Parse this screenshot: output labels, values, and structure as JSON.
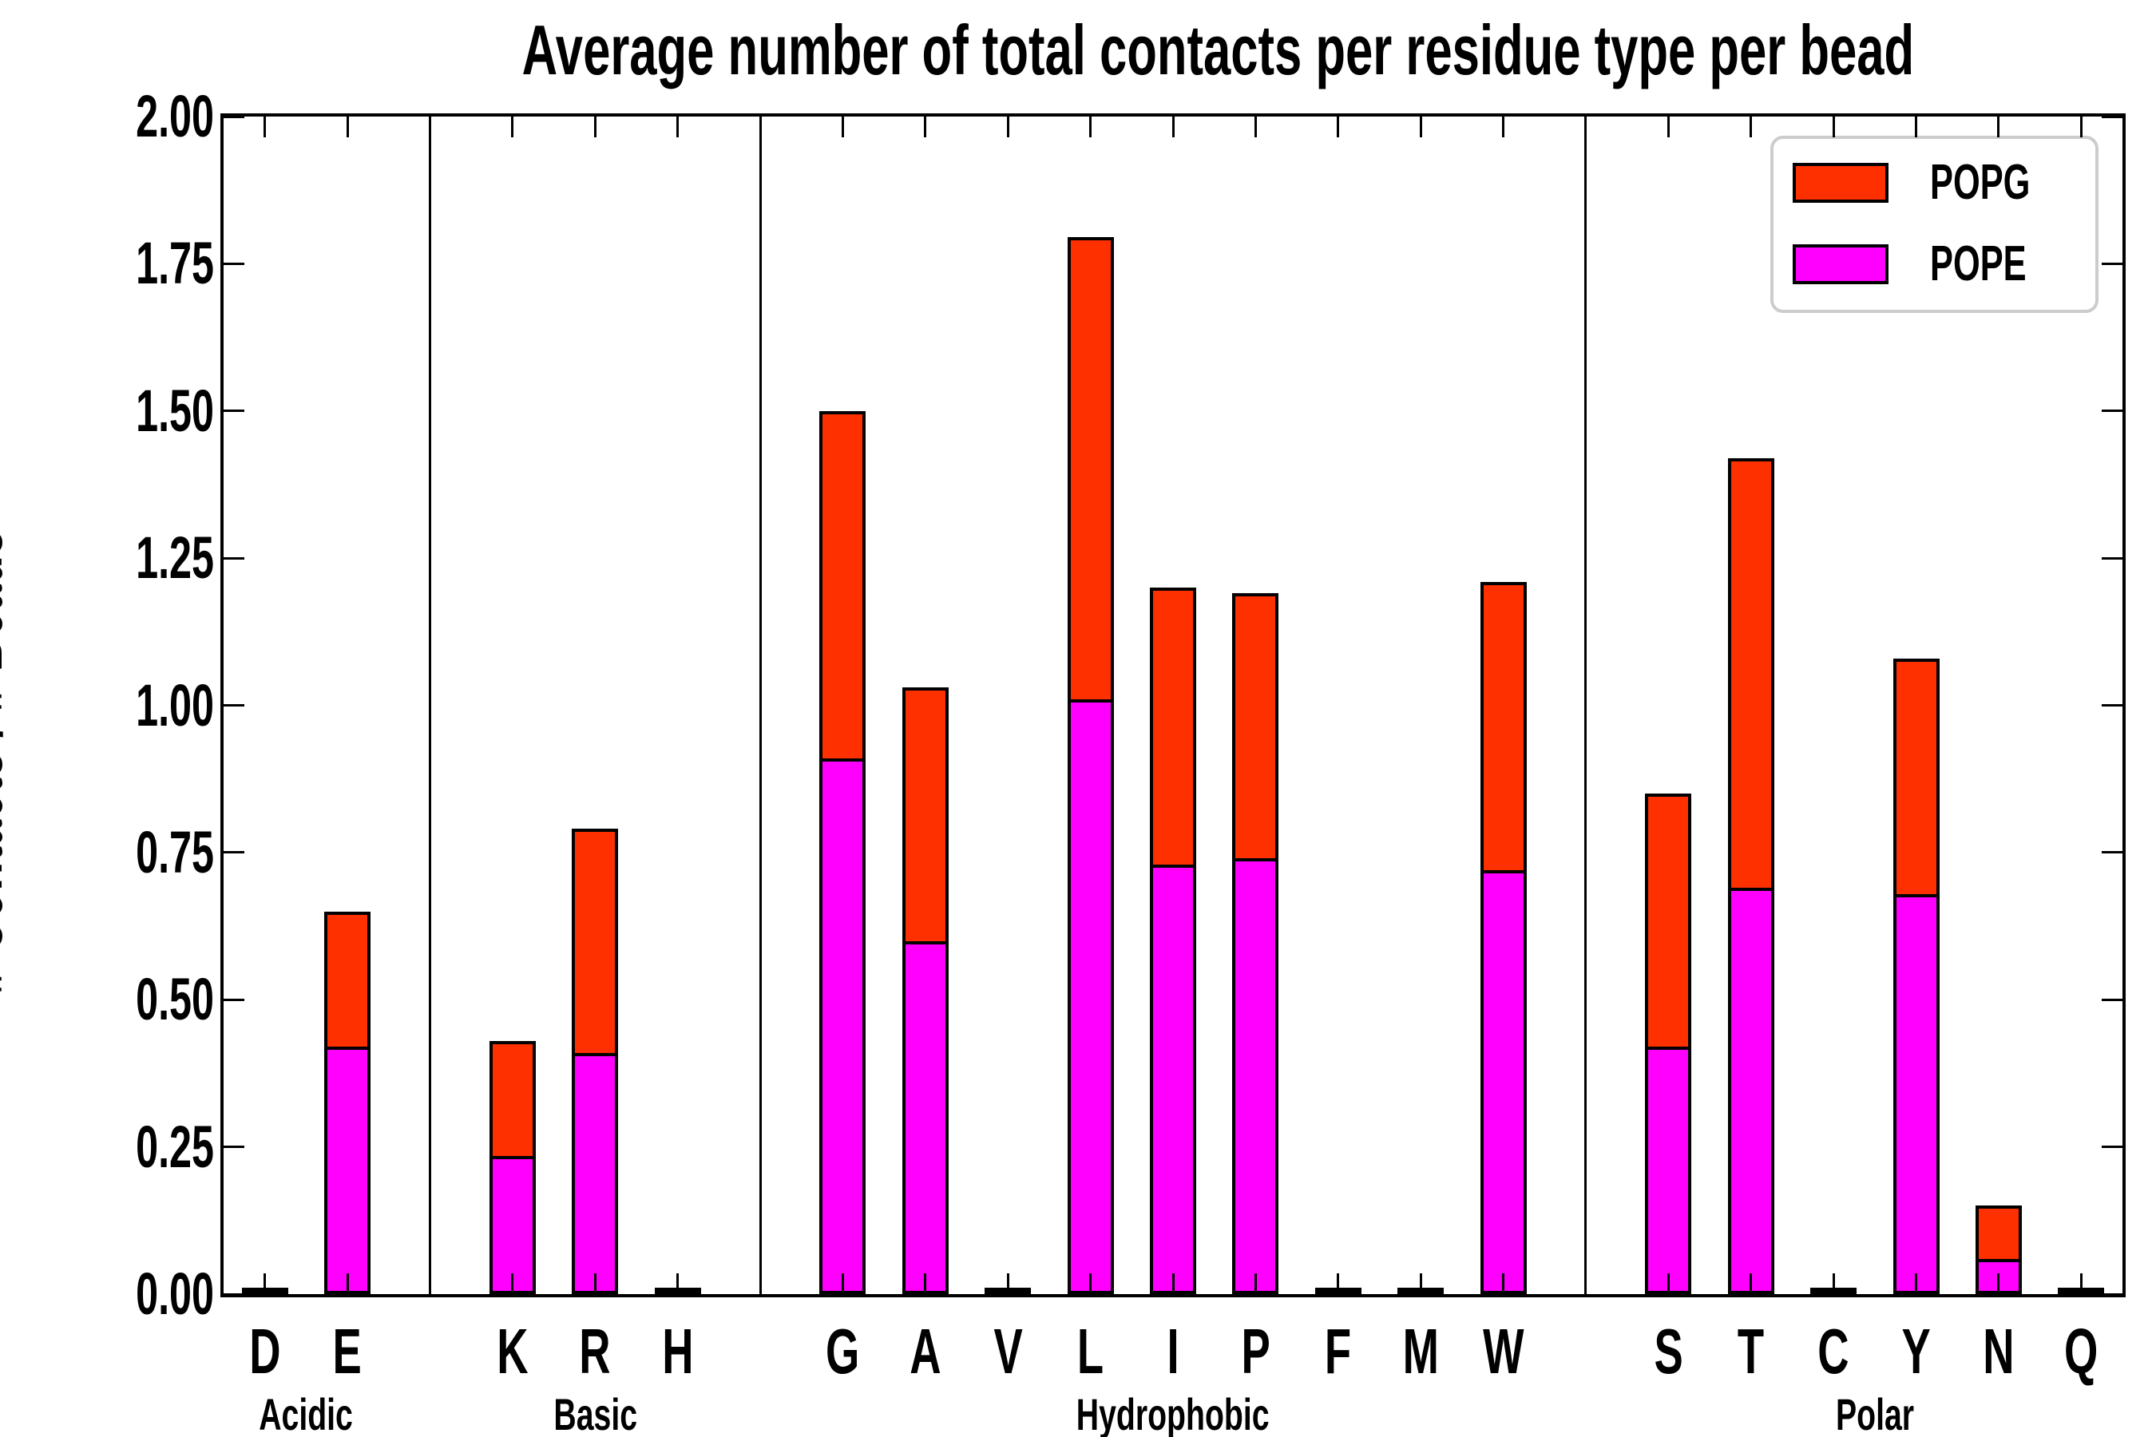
{
  "title": "Average number of total contacts per residue type per bead",
  "axis": {
    "ylabel": "# Contacts / # Beads",
    "ylim": [
      0.0,
      2.0
    ],
    "ytick_step": 0.25,
    "ytick_labels": [
      "0.00",
      "0.25",
      "0.50",
      "0.75",
      "1.00",
      "1.25",
      "1.50",
      "1.75",
      "2.00"
    ]
  },
  "legend": {
    "position": "upper right",
    "entries": [
      {
        "label": "POPG",
        "color": "#ff3000"
      },
      {
        "label": "POPE",
        "color": "#ff00ff"
      }
    ]
  },
  "colors": {
    "popg_red": "#ff3000",
    "pope_magenta": "#ff00ff",
    "bar_edge": "#000000",
    "legend_border": "#cccccc",
    "background": "#ffffff"
  },
  "chart_data": {
    "type": "bar",
    "stacked": true,
    "title": "Average number of total contacts per residue type per bead",
    "xlabel": "",
    "ylabel": "# Contacts / # Beads",
    "ylim": [
      0.0,
      2.0
    ],
    "grid": false,
    "legend_position": "upper right",
    "series_order_bottom_to_top": [
      "POPE",
      "POPG"
    ],
    "series_colors": {
      "POPE": "#ff00ff",
      "POPG": "#ff3000"
    },
    "groups": [
      {
        "label": "Acidic",
        "categories": [
          "D",
          "E"
        ],
        "POPE": [
          0.003,
          0.42
        ],
        "POPG": [
          0.003,
          0.23
        ]
      },
      {
        "label": "Basic",
        "categories": [
          "K",
          "R",
          "H"
        ],
        "POPE": [
          0.235,
          0.41,
          0.003
        ],
        "POPG": [
          0.195,
          0.38,
          0.003
        ]
      },
      {
        "label": "Hydrophobic",
        "categories": [
          "G",
          "A",
          "V",
          "L",
          "I",
          "P",
          "F",
          "M",
          "W"
        ],
        "POPE": [
          0.91,
          0.6,
          0.003,
          1.01,
          0.73,
          0.74,
          0.003,
          0.003,
          0.72
        ],
        "POPG": [
          0.59,
          0.43,
          0.003,
          0.785,
          0.47,
          0.45,
          0.003,
          0.003,
          0.49
        ]
      },
      {
        "label": "Polar",
        "categories": [
          "S",
          "T",
          "C",
          "Y",
          "N",
          "Q"
        ],
        "POPE": [
          0.42,
          0.69,
          0.003,
          0.68,
          0.06,
          0.003
        ],
        "POPG": [
          0.43,
          0.73,
          0.003,
          0.4,
          0.09,
          0.003
        ]
      }
    ]
  }
}
